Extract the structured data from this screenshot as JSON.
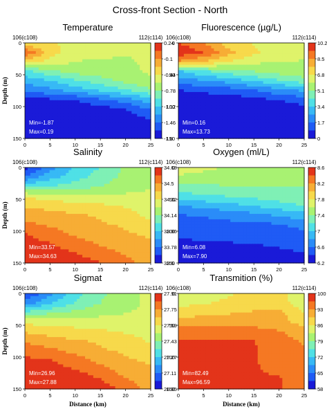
{
  "title": "Cross-front Section - North",
  "shared": {
    "station_left": "106(c108)",
    "station_right": "112(c114)",
    "xlabel": "Distance (km)",
    "ylabel": "Depth (m)",
    "x_ticks": [
      "0",
      "5",
      "10",
      "15",
      "20",
      "25"
    ],
    "y_ticks": [
      "0",
      "50",
      "100",
      "150"
    ],
    "xlim": [
      0,
      25
    ],
    "ylim": [
      150,
      0
    ]
  },
  "palette": [
    "#1a1ad8",
    "#1f5bf5",
    "#2a8cf8",
    "#37b9f5",
    "#4fe0e6",
    "#7ff0b5",
    "#a8f272",
    "#dff36a",
    "#f7d94b",
    "#f7ad35",
    "#f57823",
    "#e3341a"
  ],
  "chart_data": [
    {
      "type": "heatmap",
      "title": "Temperature",
      "colormap": "jet",
      "reverse": false,
      "colorbar_ticks": [
        "0.24",
        "-0.1",
        "-0.44",
        "-0.78",
        "-1.12",
        "-1.46",
        "-1.8"
      ],
      "colorbar_range": [
        -1.8,
        0.24
      ],
      "min_label": "Min=-1.87",
      "max_label": "Max=0.19",
      "min": -1.87,
      "max": 0.19,
      "x": [
        0,
        5,
        10,
        15,
        20,
        25
      ],
      "depth": [
        0,
        15,
        30,
        45,
        60,
        75,
        90,
        105,
        120,
        135,
        150
      ],
      "values": [
        [
          0.67,
          0.68,
          0.64,
          0.62,
          0.6,
          0.6
        ],
        [
          0.92,
          0.7,
          0.62,
          0.61,
          0.59,
          0.6
        ],
        [
          0.7,
          0.63,
          0.58,
          0.57,
          0.57,
          0.6
        ],
        [
          0.38,
          0.48,
          0.53,
          0.55,
          0.57,
          0.59
        ],
        [
          0.28,
          0.32,
          0.4,
          0.46,
          0.52,
          0.58
        ],
        [
          0.18,
          0.22,
          0.28,
          0.34,
          0.4,
          0.48
        ],
        [
          0.05,
          0.06,
          0.08,
          0.14,
          0.2,
          0.3
        ],
        [
          0.03,
          0.03,
          0.03,
          0.04,
          0.08,
          0.16
        ],
        [
          0.02,
          0.02,
          0.02,
          0.02,
          0.04,
          0.08
        ],
        [
          0.01,
          0.01,
          0.01,
          0.01,
          0.02,
          0.04
        ],
        [
          0.01,
          0.01,
          0.01,
          0.01,
          0.01,
          0.02
        ]
      ]
    },
    {
      "type": "heatmap",
      "title": "Fluorescence (µg/L)",
      "colormap": "jet",
      "reverse": true,
      "colorbar_ticks": [
        "10.2",
        "8.5",
        "6.8",
        "5.1",
        "3.4",
        "1.7",
        "0"
      ],
      "colorbar_range": [
        0,
        10.2
      ],
      "min_label": "Min=0.16",
      "max_label": "Max=13.73",
      "min": 0.16,
      "max": 13.73,
      "x": [
        0,
        5,
        10,
        15,
        20,
        25
      ],
      "depth": [
        0,
        15,
        30,
        45,
        60,
        75,
        90,
        105,
        120,
        135,
        150
      ],
      "values": [
        [
          0.92,
          0.84,
          0.7,
          0.66,
          0.62,
          0.6
        ],
        [
          0.98,
          0.92,
          0.78,
          0.68,
          0.62,
          0.6
        ],
        [
          0.82,
          0.74,
          0.66,
          0.6,
          0.58,
          0.58
        ],
        [
          0.32,
          0.4,
          0.46,
          0.5,
          0.54,
          0.56
        ],
        [
          0.2,
          0.24,
          0.28,
          0.34,
          0.4,
          0.46
        ],
        [
          0.08,
          0.1,
          0.12,
          0.16,
          0.22,
          0.26
        ],
        [
          0.03,
          0.03,
          0.03,
          0.05,
          0.08,
          0.12
        ],
        [
          0.01,
          0.01,
          0.01,
          0.02,
          0.03,
          0.05
        ],
        [
          0.01,
          0.01,
          0.01,
          0.01,
          0.01,
          0.02
        ],
        [
          0.0,
          0.0,
          0.0,
          0.0,
          0.0,
          0.01
        ],
        [
          0.0,
          0.0,
          0.0,
          0.0,
          0.0,
          0.0
        ]
      ]
    },
    {
      "type": "heatmap",
      "title": "Salinity",
      "colormap": "jet",
      "reverse": false,
      "colorbar_ticks": [
        "34.68",
        "34.5",
        "34.32",
        "34.14",
        "33.96",
        "33.78",
        "33.6"
      ],
      "colorbar_range": [
        33.6,
        34.68
      ],
      "min_label": "Min=33.57",
      "max_label": "Max=34.63",
      "min": 33.57,
      "max": 34.63,
      "x": [
        0,
        5,
        10,
        15,
        20,
        25
      ],
      "depth": [
        0,
        15,
        30,
        45,
        60,
        75,
        90,
        105,
        120,
        135,
        150
      ],
      "values": [
        [
          0.05,
          0.22,
          0.34,
          0.42,
          0.52,
          0.58
        ],
        [
          0.18,
          0.3,
          0.38,
          0.46,
          0.52,
          0.56
        ],
        [
          0.4,
          0.42,
          0.46,
          0.5,
          0.54,
          0.58
        ],
        [
          0.66,
          0.62,
          0.6,
          0.6,
          0.6,
          0.6
        ],
        [
          0.74,
          0.72,
          0.7,
          0.68,
          0.66,
          0.62
        ],
        [
          0.8,
          0.78,
          0.76,
          0.74,
          0.7,
          0.64
        ],
        [
          0.86,
          0.82,
          0.78,
          0.76,
          0.74,
          0.7
        ],
        [
          0.92,
          0.88,
          0.82,
          0.78,
          0.76,
          0.74
        ],
        [
          0.95,
          0.92,
          0.88,
          0.82,
          0.78,
          0.76
        ],
        [
          0.97,
          0.95,
          0.92,
          0.88,
          0.82,
          0.78
        ],
        [
          0.98,
          0.97,
          0.95,
          0.92,
          0.86,
          0.8
        ]
      ]
    },
    {
      "type": "heatmap",
      "title": "Oxygen (ml/L)",
      "colormap": "jet",
      "reverse": false,
      "colorbar_ticks": [
        "8.6",
        "8.2",
        "7.8",
        "7.4",
        "7",
        "6.6",
        "6.2"
      ],
      "colorbar_range": [
        6.2,
        8.6
      ],
      "min_label": "Min=6.08",
      "max_label": "Max=7.90",
      "min": 6.08,
      "max": 7.9,
      "x": [
        0,
        5,
        10,
        15,
        20,
        25
      ],
      "depth": [
        0,
        15,
        30,
        45,
        60,
        75,
        90,
        105,
        120,
        135,
        150
      ],
      "values": [
        [
          0.6,
          0.6,
          0.58,
          0.52,
          0.52,
          0.52
        ],
        [
          0.58,
          0.56,
          0.54,
          0.52,
          0.52,
          0.52
        ],
        [
          0.48,
          0.48,
          0.5,
          0.5,
          0.5,
          0.5
        ],
        [
          0.38,
          0.4,
          0.42,
          0.44,
          0.46,
          0.48
        ],
        [
          0.24,
          0.28,
          0.3,
          0.34,
          0.38,
          0.42
        ],
        [
          0.16,
          0.18,
          0.2,
          0.22,
          0.26,
          0.3
        ],
        [
          0.12,
          0.12,
          0.14,
          0.14,
          0.16,
          0.2
        ],
        [
          0.1,
          0.1,
          0.1,
          0.12,
          0.12,
          0.14
        ],
        [
          0.06,
          0.08,
          0.08,
          0.08,
          0.1,
          0.12
        ],
        [
          0.04,
          0.04,
          0.05,
          0.05,
          0.06,
          0.08
        ],
        [
          0.02,
          0.02,
          0.03,
          0.03,
          0.04,
          0.05
        ]
      ]
    },
    {
      "type": "heatmap",
      "title": "Sigmat",
      "colormap": "jet",
      "reverse": false,
      "colorbar_ticks": [
        "27.91",
        "27.75",
        "27.59",
        "27.43",
        "27.27",
        "27.11",
        "26.95"
      ],
      "colorbar_range": [
        26.95,
        27.91
      ],
      "min_label": "Min=26.96",
      "max_label": "Max=27.88",
      "min": 26.96,
      "max": 27.88,
      "x": [
        0,
        5,
        10,
        15,
        20,
        25
      ],
      "depth": [
        0,
        15,
        30,
        45,
        60,
        75,
        90,
        105,
        120,
        135,
        150
      ],
      "values": [
        [
          0.08,
          0.22,
          0.38,
          0.48,
          0.56,
          0.6
        ],
        [
          0.2,
          0.32,
          0.42,
          0.5,
          0.56,
          0.6
        ],
        [
          0.44,
          0.48,
          0.52,
          0.56,
          0.58,
          0.6
        ],
        [
          0.64,
          0.64,
          0.62,
          0.62,
          0.62,
          0.62
        ],
        [
          0.74,
          0.72,
          0.7,
          0.68,
          0.66,
          0.64
        ],
        [
          0.82,
          0.78,
          0.76,
          0.74,
          0.7,
          0.66
        ],
        [
          0.9,
          0.86,
          0.8,
          0.76,
          0.74,
          0.7
        ],
        [
          0.93,
          0.92,
          0.88,
          0.8,
          0.76,
          0.74
        ],
        [
          0.95,
          0.94,
          0.92,
          0.88,
          0.78,
          0.76
        ],
        [
          0.97,
          0.96,
          0.95,
          0.92,
          0.84,
          0.78
        ],
        [
          0.98,
          0.97,
          0.96,
          0.95,
          0.9,
          0.8
        ]
      ]
    },
    {
      "type": "heatmap",
      "title": "Transmition (%)",
      "colormap": "jet",
      "reverse": false,
      "colorbar_ticks": [
        "100",
        "93",
        "86",
        "79",
        "72",
        "65",
        "58"
      ],
      "colorbar_range": [
        58,
        100
      ],
      "min_label": "Min=82.49",
      "max_label": "Max=96.59",
      "min": 82.49,
      "max": 96.59,
      "x": [
        0,
        5,
        10,
        15,
        20,
        25
      ],
      "depth": [
        0,
        15,
        30,
        45,
        60,
        75,
        90,
        105,
        120,
        135,
        150
      ],
      "values": [
        [
          0.62,
          0.64,
          0.66,
          0.68,
          0.7,
          0.6
        ],
        [
          0.64,
          0.66,
          0.68,
          0.7,
          0.7,
          0.62
        ],
        [
          0.7,
          0.72,
          0.74,
          0.76,
          0.78,
          0.66
        ],
        [
          0.8,
          0.8,
          0.8,
          0.78,
          0.78,
          0.72
        ],
        [
          0.9,
          0.9,
          0.9,
          0.88,
          0.84,
          0.78
        ],
        [
          0.92,
          0.92,
          0.92,
          0.92,
          0.88,
          0.82
        ],
        [
          0.92,
          0.92,
          0.92,
          0.92,
          0.9,
          0.84
        ],
        [
          0.92,
          0.92,
          0.92,
          0.92,
          0.9,
          0.86
        ],
        [
          0.92,
          0.92,
          0.92,
          0.92,
          0.91,
          0.88
        ],
        [
          0.92,
          0.92,
          0.92,
          0.92,
          0.92,
          0.88
        ],
        [
          0.92,
          0.92,
          0.92,
          0.92,
          0.92,
          0.9
        ]
      ]
    }
  ]
}
